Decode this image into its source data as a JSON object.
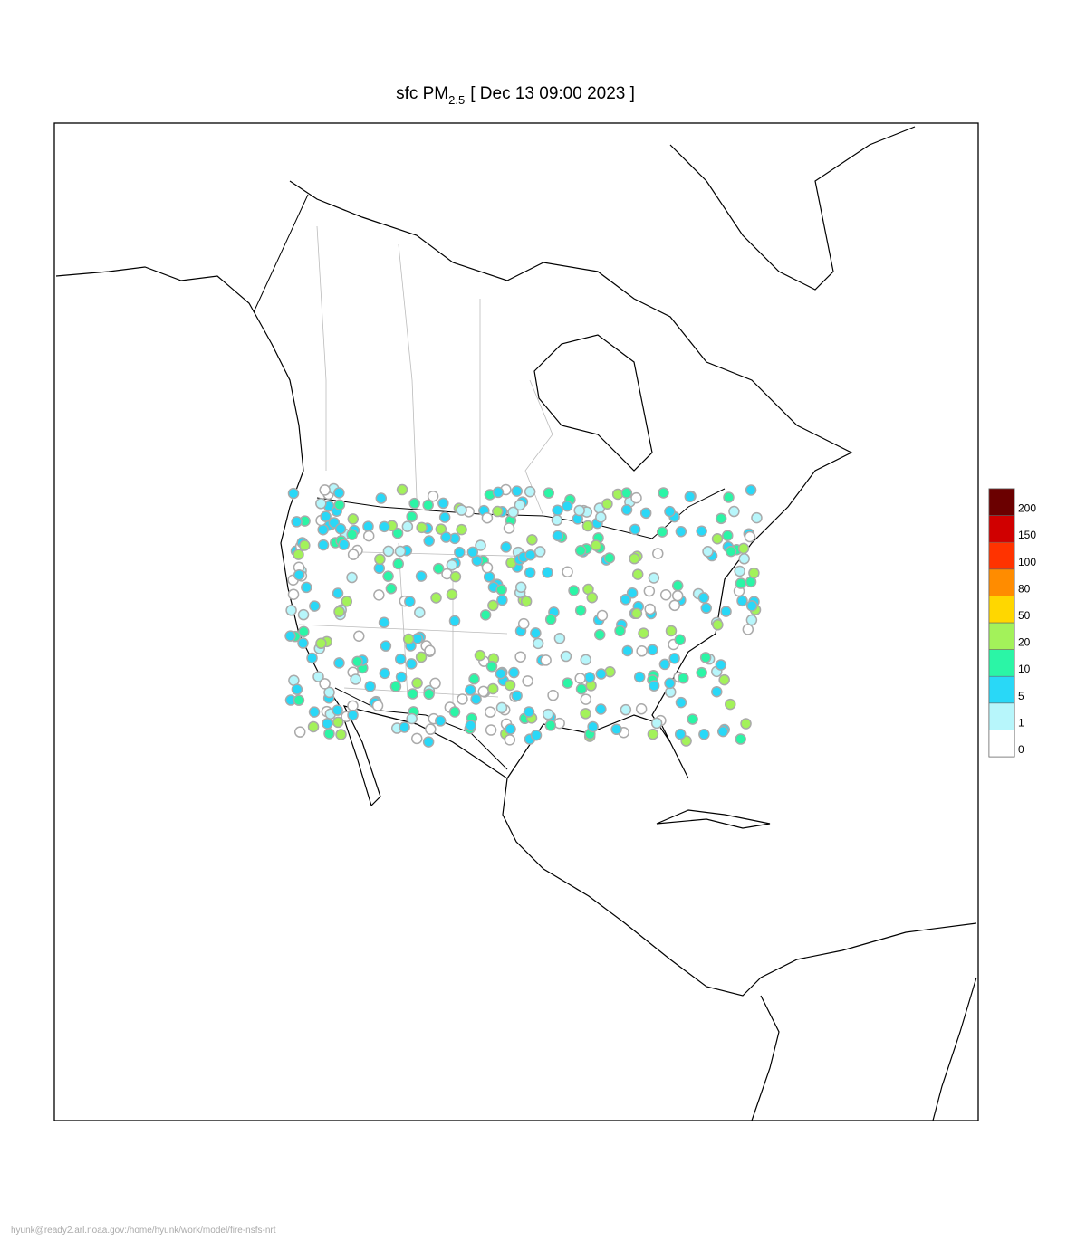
{
  "title": {
    "prefix": "sfc PM",
    "subscript": "2.5",
    "suffix": "[ Dec 13 09:00 2023 ]"
  },
  "colorbar": {
    "levels": [
      0,
      1,
      5,
      10,
      20,
      50,
      80,
      100,
      150,
      200
    ],
    "colors": [
      "#ffffff",
      "#b7f6fb",
      "#29d8f7",
      "#2bf5a6",
      "#a3f25a",
      "#ffd700",
      "#ff8c00",
      "#ff3300",
      "#d00000",
      "#6b0000"
    ]
  },
  "footer": "hyunk@ready2.arl.noaa.gov:/home/hyunk/work/model/fire-nsfs-nrt"
}
